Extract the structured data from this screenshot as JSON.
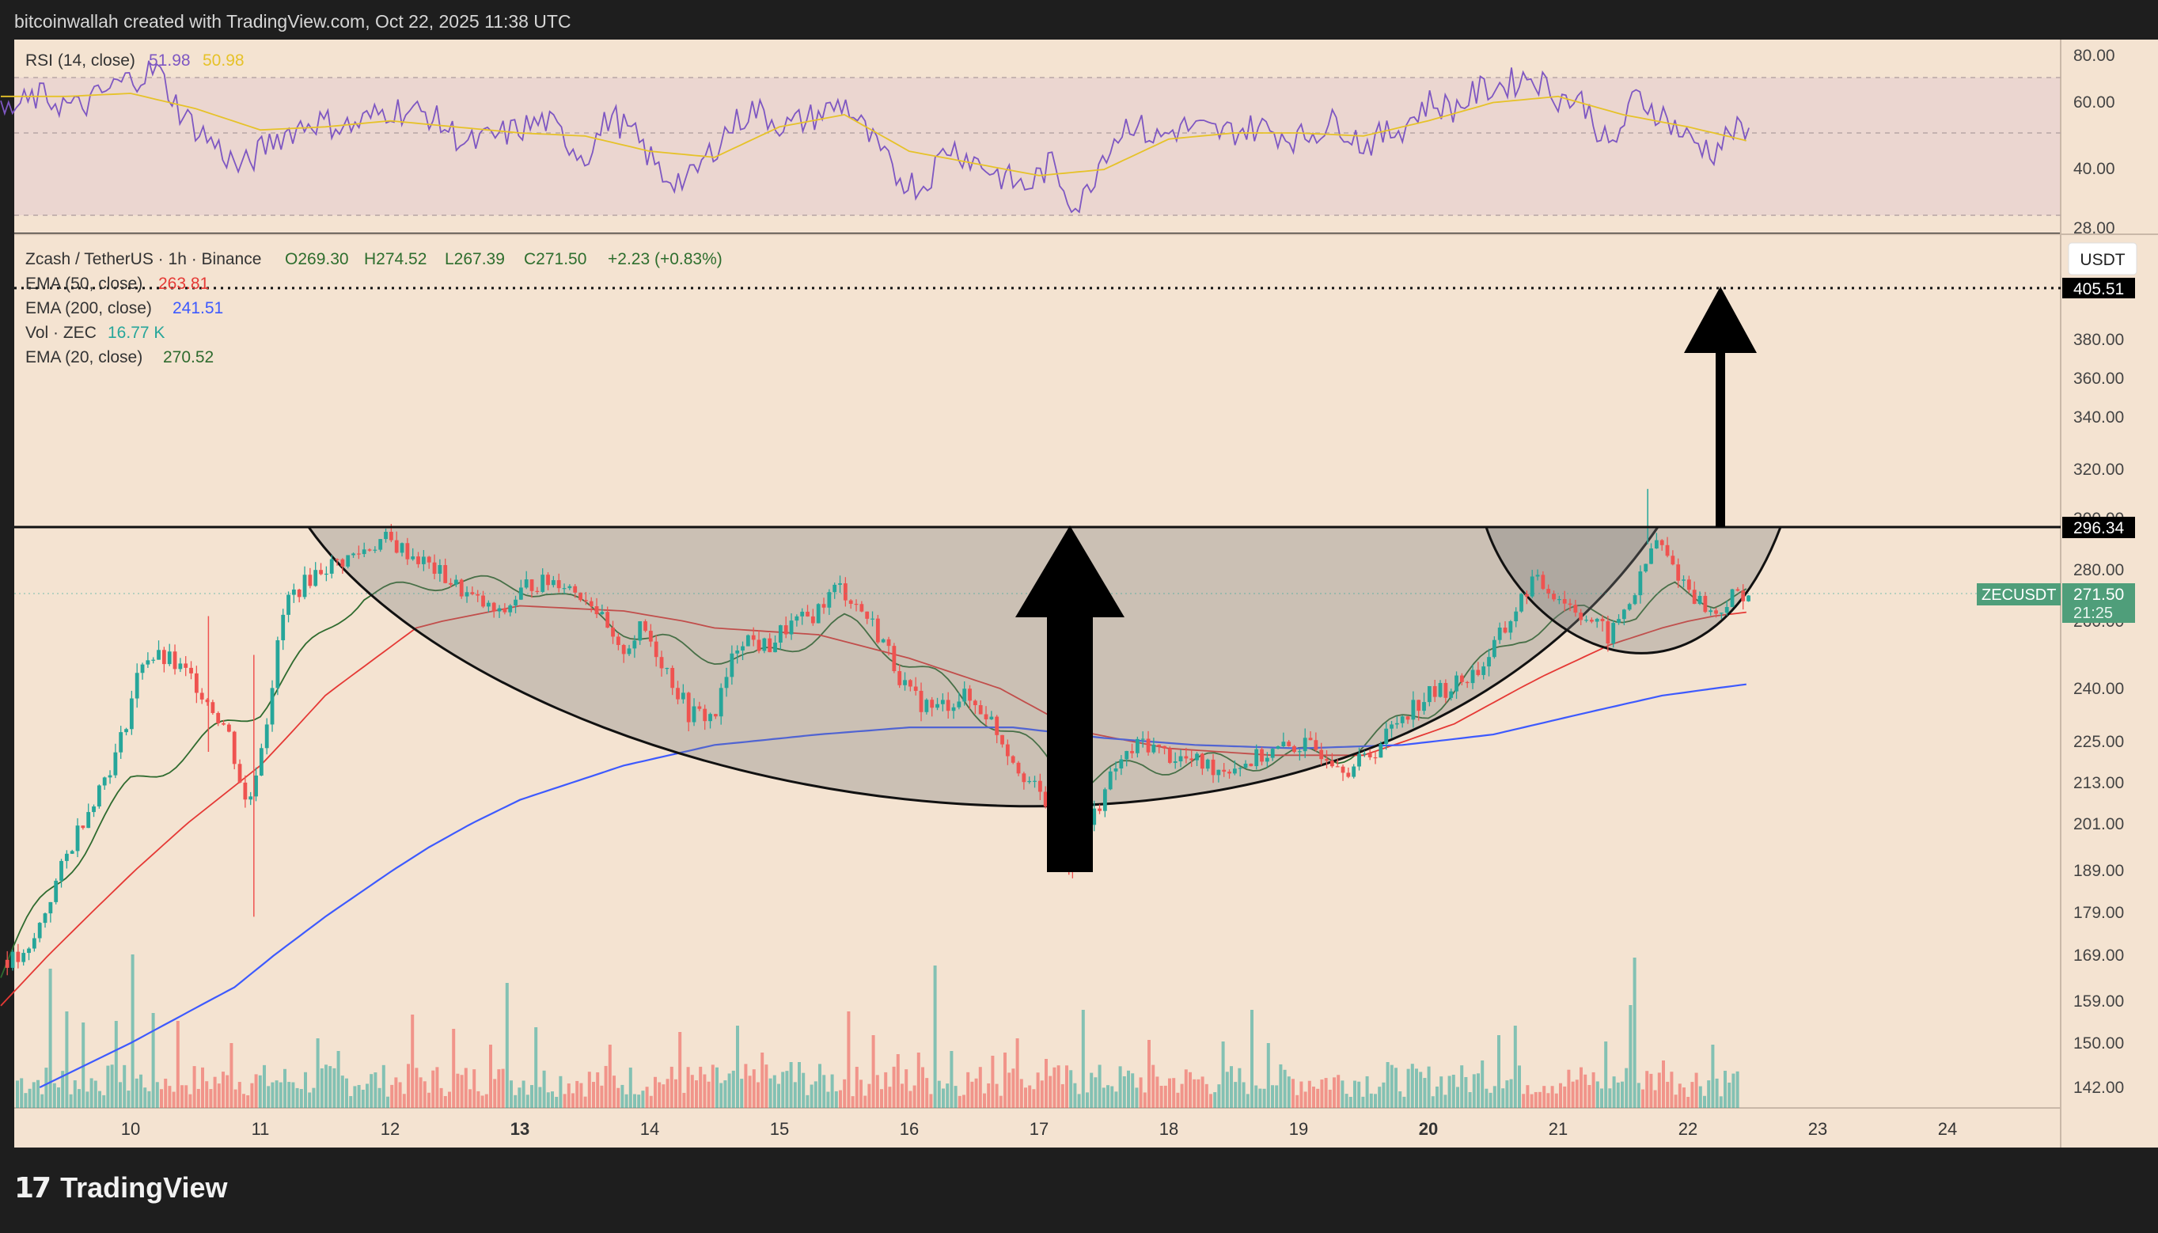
{
  "header": {
    "attribution": "bitcoinwallah created with TradingView.com, Oct 22, 2025 11:38 UTC"
  },
  "branding": {
    "logo_text": "TradingView",
    "logo_icon": "tradingview-logo-icon"
  },
  "colors": {
    "background": "#f4e3d1",
    "rsi_background": "#ebd6d0",
    "up_candle": "#26a69a",
    "down_candle": "#ef5350",
    "ema20": "#2f6b2f",
    "ema50": "#e53935",
    "ema200": "#3d5afe",
    "rsi_line": "#7e57c2",
    "rsi_ma": "#e6c229",
    "pattern_fill": "#8a8a8a"
  },
  "rsi_pane": {
    "legend_name": "RSI (14, close)",
    "value": "51.98",
    "ma_value": "50.98",
    "axis_ticks": [
      "80.00",
      "60.00",
      "40.00",
      "28.00"
    ]
  },
  "price_pane": {
    "legend": {
      "symbol": "Zcash / TetherUS · 1h · Binance",
      "open": "O269.30",
      "high": "H274.52",
      "low": "L267.39",
      "close": "C271.50",
      "change": "+2.23 (+0.83%)"
    },
    "indicators": [
      {
        "name": "EMA (50, close)",
        "value": "263.81"
      },
      {
        "name": "EMA (200, close)",
        "value": "241.51"
      },
      {
        "name": "Vol · ZEC",
        "value": "16.77 K"
      },
      {
        "name": "EMA (20, close)",
        "value": "270.52"
      }
    ],
    "currency_button": "USDT",
    "axis_ticks": [
      "380.00",
      "360.00",
      "340.00",
      "320.00",
      "300.00",
      "280.00",
      "260.00",
      "240.00",
      "225.00",
      "213.00",
      "201.00",
      "189.00",
      "179.00",
      "169.00",
      "159.00",
      "150.00",
      "142.00"
    ],
    "target_label": "405.51",
    "resistance_label": "296.34",
    "symbol_label": "ZECUSDT",
    "last_price": "271.50",
    "countdown": "21:25"
  },
  "chart_data": {
    "type": "candlestick",
    "title": "",
    "x_tick_labels": [
      "10",
      "11",
      "12",
      "13",
      "14",
      "15",
      "16",
      "17",
      "18",
      "19",
      "20",
      "21",
      "22",
      "23",
      "24"
    ],
    "bold_x_ticks": [
      "13",
      "20"
    ],
    "price_range": [
      142,
      405.51
    ],
    "rsi_range": [
      28,
      80
    ],
    "last_close": 271.5,
    "resistance": 296.34,
    "target": 405.51,
    "price_path": [
      [
        9.2,
        168
      ],
      [
        9.6,
        200
      ],
      [
        9.9,
        222
      ],
      [
        10.1,
        250
      ],
      [
        10.3,
        248
      ],
      [
        10.5,
        242
      ],
      [
        10.75,
        228
      ],
      [
        10.9,
        205
      ],
      [
        11.05,
        232
      ],
      [
        11.2,
        268
      ],
      [
        11.45,
        280
      ],
      [
        11.7,
        285
      ],
      [
        11.95,
        292
      ],
      [
        12.2,
        285
      ],
      [
        12.4,
        278
      ],
      [
        12.6,
        270
      ],
      [
        12.85,
        262
      ],
      [
        13.05,
        274
      ],
      [
        13.3,
        276
      ],
      [
        13.55,
        268
      ],
      [
        13.75,
        250
      ],
      [
        13.95,
        258
      ],
      [
        14.1,
        248
      ],
      [
        14.3,
        233
      ],
      [
        14.5,
        232
      ],
      [
        14.7,
        256
      ],
      [
        14.9,
        252
      ],
      [
        15.05,
        258
      ],
      [
        15.25,
        262
      ],
      [
        15.45,
        274
      ],
      [
        15.6,
        266
      ],
      [
        15.8,
        254
      ],
      [
        16.0,
        238
      ],
      [
        16.2,
        234
      ],
      [
        16.4,
        238
      ],
      [
        16.6,
        233
      ],
      [
        16.8,
        220
      ],
      [
        16.95,
        212
      ],
      [
        17.1,
        205
      ],
      [
        17.25,
        190
      ],
      [
        17.4,
        202
      ],
      [
        17.6,
        218
      ],
      [
        17.8,
        225
      ],
      [
        18.0,
        221
      ],
      [
        18.2,
        219
      ],
      [
        18.4,
        217
      ],
      [
        18.6,
        219
      ],
      [
        18.8,
        222
      ],
      [
        19.0,
        224
      ],
      [
        19.2,
        222
      ],
      [
        19.4,
        217
      ],
      [
        19.6,
        223
      ],
      [
        19.8,
        233
      ],
      [
        20.0,
        238
      ],
      [
        20.2,
        241
      ],
      [
        20.4,
        246
      ],
      [
        20.6,
        258
      ],
      [
        20.8,
        276
      ],
      [
        21.0,
        270
      ],
      [
        21.2,
        262
      ],
      [
        21.4,
        255
      ],
      [
        21.6,
        272
      ],
      [
        21.75,
        292
      ],
      [
        21.9,
        280
      ],
      [
        22.05,
        270
      ],
      [
        22.2,
        262
      ],
      [
        22.35,
        270
      ],
      [
        22.5,
        271.5
      ]
    ],
    "series": [
      {
        "name": "EMA (20, close)",
        "value": 270.52,
        "path": [
          [
            9.0,
            166
          ],
          [
            10.0,
            212
          ],
          [
            11.0,
            235
          ],
          [
            11.8,
            270
          ],
          [
            12.5,
            276
          ],
          [
            13.2,
            272
          ],
          [
            14.0,
            254
          ],
          [
            14.8,
            248
          ],
          [
            15.5,
            260
          ],
          [
            16.2,
            243
          ],
          [
            16.9,
            224
          ],
          [
            17.3,
            213
          ],
          [
            17.8,
            218
          ],
          [
            18.5,
            219
          ],
          [
            19.3,
            221
          ],
          [
            20.0,
            234
          ],
          [
            20.7,
            256
          ],
          [
            21.2,
            264
          ],
          [
            21.6,
            262
          ],
          [
            21.9,
            273
          ],
          [
            22.2,
            268
          ],
          [
            22.5,
            270.5
          ]
        ]
      },
      {
        "name": "EMA (50, close)",
        "value": 263.81,
        "path": [
          [
            9.0,
            158
          ],
          [
            10.0,
            188
          ],
          [
            11.0,
            218
          ],
          [
            11.5,
            238
          ],
          [
            12.2,
            258
          ],
          [
            13.0,
            266
          ],
          [
            13.8,
            264
          ],
          [
            14.5,
            258
          ],
          [
            15.3,
            256
          ],
          [
            16.0,
            249
          ],
          [
            16.7,
            240
          ],
          [
            17.3,
            228
          ],
          [
            18.0,
            223
          ],
          [
            18.8,
            221
          ],
          [
            19.5,
            221
          ],
          [
            20.2,
            230
          ],
          [
            20.9,
            244
          ],
          [
            21.4,
            253
          ],
          [
            21.8,
            258
          ],
          [
            22.2,
            262
          ],
          [
            22.5,
            263.8
          ]
        ]
      },
      {
        "name": "EMA (200, close)",
        "value": 241.51,
        "path": [
          [
            9.3,
            142
          ],
          [
            10.0,
            150
          ],
          [
            10.8,
            162
          ],
          [
            11.5,
            178
          ],
          [
            12.3,
            195
          ],
          [
            13.0,
            208
          ],
          [
            13.8,
            218
          ],
          [
            14.5,
            224
          ],
          [
            15.3,
            227
          ],
          [
            16.0,
            229
          ],
          [
            16.8,
            229
          ],
          [
            17.5,
            226
          ],
          [
            18.2,
            224
          ],
          [
            19.0,
            223
          ],
          [
            19.8,
            224
          ],
          [
            20.5,
            227
          ],
          [
            21.2,
            233
          ],
          [
            21.8,
            238
          ],
          [
            22.5,
            241.5
          ]
        ]
      }
    ],
    "rsi": {
      "name": "RSI (14, close)",
      "value": 51.98,
      "ma_value": 50.98,
      "path": [
        [
          9.0,
          60
        ],
        [
          9.3,
          66
        ],
        [
          9.6,
          62
        ],
        [
          9.9,
          70
        ],
        [
          10.2,
          75
        ],
        [
          10.4,
          60
        ],
        [
          10.6,
          52
        ],
        [
          10.85,
          42
        ],
        [
          11.1,
          52
        ],
        [
          11.4,
          58
        ],
        [
          11.7,
          56
        ],
        [
          12.0,
          62
        ],
        [
          12.3,
          60
        ],
        [
          12.6,
          50
        ],
        [
          12.9,
          54
        ],
        [
          13.2,
          58
        ],
        [
          13.5,
          46
        ],
        [
          13.7,
          60
        ],
        [
          13.9,
          52
        ],
        [
          14.1,
          40
        ],
        [
          14.3,
          38
        ],
        [
          14.6,
          55
        ],
        [
          14.8,
          62
        ],
        [
          15.05,
          56
        ],
        [
          15.3,
          60
        ],
        [
          15.5,
          64
        ],
        [
          15.7,
          52
        ],
        [
          15.9,
          40
        ],
        [
          16.1,
          36
        ],
        [
          16.3,
          50
        ],
        [
          16.5,
          45
        ],
        [
          16.7,
          40
        ],
        [
          16.9,
          36
        ],
        [
          17.1,
          44
        ],
        [
          17.3,
          28
        ],
        [
          17.5,
          48
        ],
        [
          17.7,
          58
        ],
        [
          17.9,
          52
        ],
        [
          18.1,
          56
        ],
        [
          18.4,
          54
        ],
        [
          18.7,
          56
        ],
        [
          19.0,
          52
        ],
        [
          19.3,
          58
        ],
        [
          19.5,
          50
        ],
        [
          19.8,
          56
        ],
        [
          20.0,
          64
        ],
        [
          20.2,
          62
        ],
        [
          20.4,
          68
        ],
        [
          20.6,
          70
        ],
        [
          20.8,
          73
        ],
        [
          21.0,
          66
        ],
        [
          21.2,
          64
        ],
        [
          21.4,
          48
        ],
        [
          21.6,
          66
        ],
        [
          21.8,
          60
        ],
        [
          22.0,
          52
        ],
        [
          22.2,
          48
        ],
        [
          22.35,
          55
        ],
        [
          22.5,
          51.98
        ]
      ],
      "ma_path": [
        [
          9.0,
          66
        ],
        [
          9.5,
          66
        ],
        [
          10.0,
          67
        ],
        [
          10.5,
          62
        ],
        [
          11.0,
          55
        ],
        [
          11.5,
          56
        ],
        [
          12.0,
          58
        ],
        [
          12.5,
          56
        ],
        [
          13.0,
          54
        ],
        [
          13.5,
          53
        ],
        [
          14.0,
          48
        ],
        [
          14.5,
          46
        ],
        [
          15.0,
          56
        ],
        [
          15.5,
          60
        ],
        [
          16.0,
          48
        ],
        [
          16.5,
          44
        ],
        [
          17.0,
          40
        ],
        [
          17.5,
          42
        ],
        [
          18.0,
          52
        ],
        [
          18.5,
          54
        ],
        [
          19.0,
          54
        ],
        [
          19.5,
          53
        ],
        [
          20.0,
          58
        ],
        [
          20.5,
          64
        ],
        [
          21.0,
          66
        ],
        [
          21.5,
          60
        ],
        [
          22.0,
          56
        ],
        [
          22.5,
          50.98
        ]
      ]
    }
  }
}
